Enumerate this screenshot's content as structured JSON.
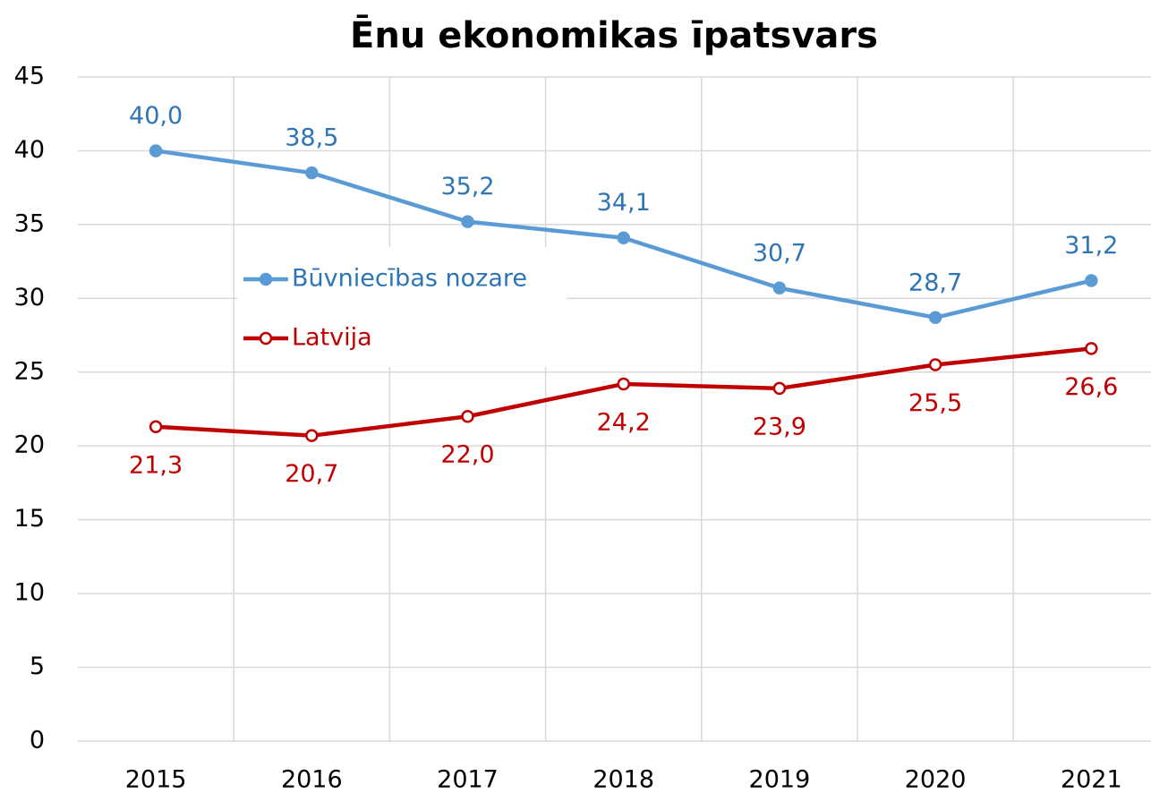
{
  "chart_data": {
    "type": "line",
    "title": "Ēnu ekonomikas īpatsvars",
    "categories": [
      "2015",
      "2016",
      "2017",
      "2018",
      "2019",
      "2020",
      "2021"
    ],
    "series": [
      {
        "name": "Būvniecības nozare",
        "color": "#5b9bd5",
        "label_color": "#2e75b6",
        "marker": "filled",
        "label_side": "above",
        "values": [
          40.0,
          38.5,
          35.2,
          34.1,
          30.7,
          28.7,
          31.2
        ],
        "value_labels": [
          "40,0",
          "38,5",
          "35,2",
          "34,1",
          "30,7",
          "28,7",
          "31,2"
        ]
      },
      {
        "name": "Latvija",
        "color": "#c00000",
        "label_color": "#c00000",
        "marker": "hollow",
        "label_side": "below",
        "values": [
          21.3,
          20.7,
          22.0,
          24.2,
          23.9,
          25.5,
          26.6
        ],
        "value_labels": [
          "21,3",
          "20,7",
          "22,0",
          "24,2",
          "23,9",
          "25,5",
          "26,6"
        ]
      }
    ],
    "ylim": [
      0,
      45
    ],
    "yticks": [
      0,
      5,
      10,
      15,
      20,
      25,
      30,
      35,
      40,
      45
    ],
    "grid": true
  }
}
